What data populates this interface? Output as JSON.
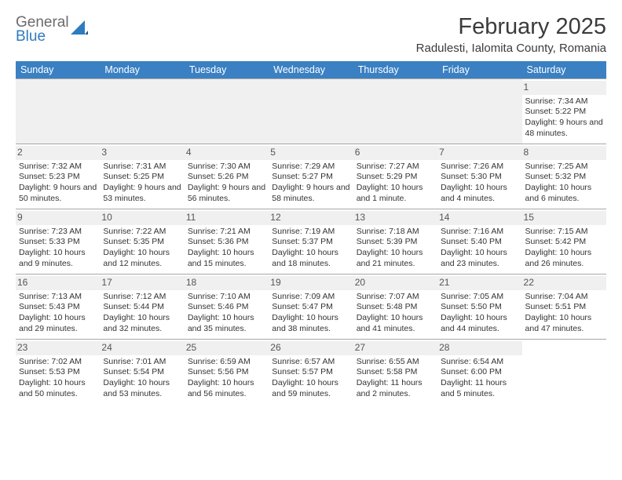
{
  "logo": {
    "word1": "General",
    "word2": "Blue",
    "color_gray": "#6b6b6b",
    "color_blue": "#2f7bbf"
  },
  "title": "February 2025",
  "location": "Radulesti, Ialomita County, Romania",
  "header_bg": "#3a80c3",
  "header_text_color": "#ffffff",
  "grid_line_color": "#a7a7a7",
  "daynum_bg": "#f0f0f0",
  "text_color": "#333333",
  "fontsize_title": 29,
  "fontsize_location": 15,
  "fontsize_dayheader": 12.5,
  "fontsize_body": 10.5,
  "day_names": [
    "Sunday",
    "Monday",
    "Tuesday",
    "Wednesday",
    "Thursday",
    "Friday",
    "Saturday"
  ],
  "weeks": [
    [
      null,
      null,
      null,
      null,
      null,
      null,
      {
        "n": "1",
        "sr": "Sunrise: 7:34 AM",
        "ss": "Sunset: 5:22 PM",
        "dl": "Daylight: 9 hours and 48 minutes."
      }
    ],
    [
      {
        "n": "2",
        "sr": "Sunrise: 7:32 AM",
        "ss": "Sunset: 5:23 PM",
        "dl": "Daylight: 9 hours and 50 minutes."
      },
      {
        "n": "3",
        "sr": "Sunrise: 7:31 AM",
        "ss": "Sunset: 5:25 PM",
        "dl": "Daylight: 9 hours and 53 minutes."
      },
      {
        "n": "4",
        "sr": "Sunrise: 7:30 AM",
        "ss": "Sunset: 5:26 PM",
        "dl": "Daylight: 9 hours and 56 minutes."
      },
      {
        "n": "5",
        "sr": "Sunrise: 7:29 AM",
        "ss": "Sunset: 5:27 PM",
        "dl": "Daylight: 9 hours and 58 minutes."
      },
      {
        "n": "6",
        "sr": "Sunrise: 7:27 AM",
        "ss": "Sunset: 5:29 PM",
        "dl": "Daylight: 10 hours and 1 minute."
      },
      {
        "n": "7",
        "sr": "Sunrise: 7:26 AM",
        "ss": "Sunset: 5:30 PM",
        "dl": "Daylight: 10 hours and 4 minutes."
      },
      {
        "n": "8",
        "sr": "Sunrise: 7:25 AM",
        "ss": "Sunset: 5:32 PM",
        "dl": "Daylight: 10 hours and 6 minutes."
      }
    ],
    [
      {
        "n": "9",
        "sr": "Sunrise: 7:23 AM",
        "ss": "Sunset: 5:33 PM",
        "dl": "Daylight: 10 hours and 9 minutes."
      },
      {
        "n": "10",
        "sr": "Sunrise: 7:22 AM",
        "ss": "Sunset: 5:35 PM",
        "dl": "Daylight: 10 hours and 12 minutes."
      },
      {
        "n": "11",
        "sr": "Sunrise: 7:21 AM",
        "ss": "Sunset: 5:36 PM",
        "dl": "Daylight: 10 hours and 15 minutes."
      },
      {
        "n": "12",
        "sr": "Sunrise: 7:19 AM",
        "ss": "Sunset: 5:37 PM",
        "dl": "Daylight: 10 hours and 18 minutes."
      },
      {
        "n": "13",
        "sr": "Sunrise: 7:18 AM",
        "ss": "Sunset: 5:39 PM",
        "dl": "Daylight: 10 hours and 21 minutes."
      },
      {
        "n": "14",
        "sr": "Sunrise: 7:16 AM",
        "ss": "Sunset: 5:40 PM",
        "dl": "Daylight: 10 hours and 23 minutes."
      },
      {
        "n": "15",
        "sr": "Sunrise: 7:15 AM",
        "ss": "Sunset: 5:42 PM",
        "dl": "Daylight: 10 hours and 26 minutes."
      }
    ],
    [
      {
        "n": "16",
        "sr": "Sunrise: 7:13 AM",
        "ss": "Sunset: 5:43 PM",
        "dl": "Daylight: 10 hours and 29 minutes."
      },
      {
        "n": "17",
        "sr": "Sunrise: 7:12 AM",
        "ss": "Sunset: 5:44 PM",
        "dl": "Daylight: 10 hours and 32 minutes."
      },
      {
        "n": "18",
        "sr": "Sunrise: 7:10 AM",
        "ss": "Sunset: 5:46 PM",
        "dl": "Daylight: 10 hours and 35 minutes."
      },
      {
        "n": "19",
        "sr": "Sunrise: 7:09 AM",
        "ss": "Sunset: 5:47 PM",
        "dl": "Daylight: 10 hours and 38 minutes."
      },
      {
        "n": "20",
        "sr": "Sunrise: 7:07 AM",
        "ss": "Sunset: 5:48 PM",
        "dl": "Daylight: 10 hours and 41 minutes."
      },
      {
        "n": "21",
        "sr": "Sunrise: 7:05 AM",
        "ss": "Sunset: 5:50 PM",
        "dl": "Daylight: 10 hours and 44 minutes."
      },
      {
        "n": "22",
        "sr": "Sunrise: 7:04 AM",
        "ss": "Sunset: 5:51 PM",
        "dl": "Daylight: 10 hours and 47 minutes."
      }
    ],
    [
      {
        "n": "23",
        "sr": "Sunrise: 7:02 AM",
        "ss": "Sunset: 5:53 PM",
        "dl": "Daylight: 10 hours and 50 minutes."
      },
      {
        "n": "24",
        "sr": "Sunrise: 7:01 AM",
        "ss": "Sunset: 5:54 PM",
        "dl": "Daylight: 10 hours and 53 minutes."
      },
      {
        "n": "25",
        "sr": "Sunrise: 6:59 AM",
        "ss": "Sunset: 5:56 PM",
        "dl": "Daylight: 10 hours and 56 minutes."
      },
      {
        "n": "26",
        "sr": "Sunrise: 6:57 AM",
        "ss": "Sunset: 5:57 PM",
        "dl": "Daylight: 10 hours and 59 minutes."
      },
      {
        "n": "27",
        "sr": "Sunrise: 6:55 AM",
        "ss": "Sunset: 5:58 PM",
        "dl": "Daylight: 11 hours and 2 minutes."
      },
      {
        "n": "28",
        "sr": "Sunrise: 6:54 AM",
        "ss": "Sunset: 6:00 PM",
        "dl": "Daylight: 11 hours and 5 minutes."
      },
      null
    ]
  ]
}
